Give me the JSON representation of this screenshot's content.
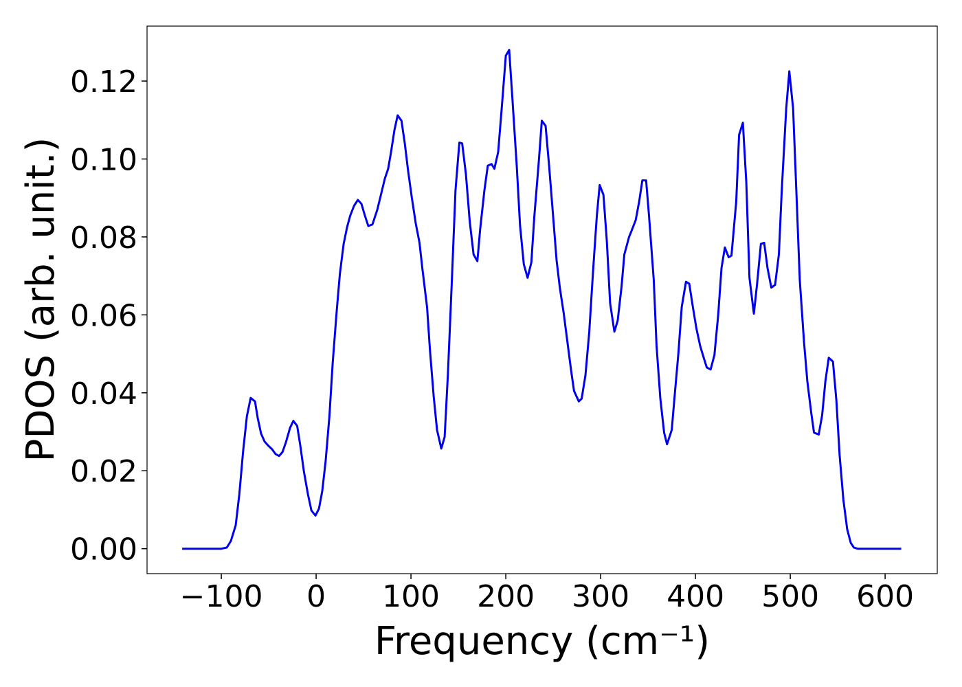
{
  "chart_data": {
    "type": "line",
    "xlabel": "Frequency (cm⁻¹)",
    "ylabel": "PDOS (arb. unit.)",
    "xlim": [
      -178.3,
      655
    ],
    "ylim": [
      -0.0064,
      0.1341
    ],
    "xticks": [
      {
        "value": -100,
        "label": "−100"
      },
      0,
      100,
      200,
      300,
      400,
      500,
      600
    ],
    "yticks": [
      {
        "value": 0,
        "label": "0.00"
      },
      {
        "value": 0.02,
        "label": "0.02"
      },
      {
        "value": 0.04,
        "label": "0.04"
      },
      {
        "value": 0.06,
        "label": "0.06"
      },
      {
        "value": 0.08,
        "label": "0.08"
      },
      {
        "value": 0.1,
        "label": "0.10"
      },
      {
        "value": 0.12,
        "label": "0.12"
      }
    ],
    "series": [
      {
        "color": "#0000ee",
        "x": [
          -141.3,
          -100,
          -94.2,
          -89.9,
          -84.8,
          -81,
          -77,
          -73,
          -69,
          -64.5,
          -61.6,
          -58,
          -54.3,
          -50.7,
          -46.4,
          -42.8,
          -39,
          -35.5,
          -32,
          -27.5,
          -24,
          -20,
          -16.7,
          -13,
          -8.7,
          -5,
          -0.7,
          3,
          6.5,
          10,
          14,
          17.4,
          21.7,
          25,
          29,
          32.6,
          36,
          40,
          44,
          47.8,
          51.4,
          55,
          59.4,
          64.5,
          69,
          72.5,
          76,
          79,
          82.6,
          86,
          90,
          93.5,
          97,
          101,
          105,
          109,
          112,
          117,
          120,
          124,
          127.5,
          132,
          135.5,
          139,
          143,
          147,
          151,
          154,
          158,
          162,
          166,
          170,
          173,
          177.5,
          181,
          185,
          188,
          192,
          196,
          200,
          203.6,
          207,
          211.6,
          215,
          219,
          223,
          227,
          230,
          235,
          238,
          242,
          245.6,
          250,
          253.6,
          257,
          261,
          265,
          269,
          272,
          277,
          280,
          284,
          288,
          292,
          296,
          299,
          303,
          306.5,
          310,
          314.5,
          318,
          322,
          325,
          330,
          333,
          337,
          340.6,
          344,
          348,
          351,
          356,
          359,
          363,
          367,
          370,
          375,
          378,
          382,
          385.5,
          390,
          393.5,
          397,
          401,
          405,
          408.7,
          412,
          416,
          420,
          424,
          427.5,
          431,
          435,
          438,
          443,
          446,
          450,
          453.6,
          457,
          461.6,
          465,
          469,
          472.5,
          476,
          480,
          484,
          488,
          491,
          495.7,
          499,
          503,
          506.5,
          510,
          514.5,
          518,
          522,
          525,
          530,
          533.6,
          537,
          540.6,
          545,
          548.6,
          552,
          556,
          560,
          563.8,
          567,
          571,
          617
        ],
        "values": [
          0,
          0,
          0.0003,
          0.002,
          0.006,
          0.014,
          0.025,
          0.034,
          0.0387,
          0.0378,
          0.0335,
          0.0295,
          0.0275,
          0.0265,
          0.0255,
          0.0243,
          0.0238,
          0.0248,
          0.0272,
          0.031,
          0.0328,
          0.0315,
          0.0265,
          0.02,
          0.014,
          0.0098,
          0.0085,
          0.0103,
          0.0148,
          0.0225,
          0.034,
          0.0475,
          0.061,
          0.0705,
          0.0782,
          0.0825,
          0.0855,
          0.088,
          0.0895,
          0.0885,
          0.0855,
          0.0828,
          0.0832,
          0.087,
          0.0915,
          0.095,
          0.0975,
          0.1018,
          0.1075,
          0.1112,
          0.1098,
          0.104,
          0.097,
          0.09,
          0.0835,
          0.0785,
          0.072,
          0.062,
          0.051,
          0.039,
          0.0305,
          0.0257,
          0.0287,
          0.045,
          0.068,
          0.092,
          0.1042,
          0.104,
          0.096,
          0.084,
          0.0755,
          0.0738,
          0.082,
          0.092,
          0.0983,
          0.0987,
          0.0975,
          0.1018,
          0.114,
          0.1265,
          0.128,
          0.1155,
          0.098,
          0.083,
          0.073,
          0.0695,
          0.0735,
          0.085,
          0.1,
          0.1098,
          0.1085,
          0.0985,
          0.085,
          0.074,
          0.067,
          0.0605,
          0.053,
          0.0455,
          0.0405,
          0.0378,
          0.0385,
          0.0445,
          0.0555,
          0.071,
          0.0855,
          0.0933,
          0.0908,
          0.079,
          0.063,
          0.0557,
          0.0585,
          0.067,
          0.0755,
          0.08,
          0.0818,
          0.0843,
          0.089,
          0.0945,
          0.0945,
          0.0855,
          0.069,
          0.052,
          0.0385,
          0.0298,
          0.0268,
          0.0305,
          0.039,
          0.05,
          0.062,
          0.0685,
          0.068,
          0.0625,
          0.0565,
          0.052,
          0.049,
          0.0465,
          0.046,
          0.0497,
          0.06,
          0.072,
          0.0773,
          0.0748,
          0.0752,
          0.089,
          0.1062,
          0.1093,
          0.094,
          0.0695,
          0.0603,
          0.068,
          0.0782,
          0.0785,
          0.072,
          0.067,
          0.0677,
          0.0755,
          0.092,
          0.113,
          0.1225,
          0.113,
          0.091,
          0.069,
          0.053,
          0.043,
          0.035,
          0.0298,
          0.0293,
          0.0343,
          0.043,
          0.049,
          0.048,
          0.038,
          0.024,
          0.0125,
          0.005,
          0.0015,
          0.0003,
          0,
          0
        ]
      }
    ]
  }
}
